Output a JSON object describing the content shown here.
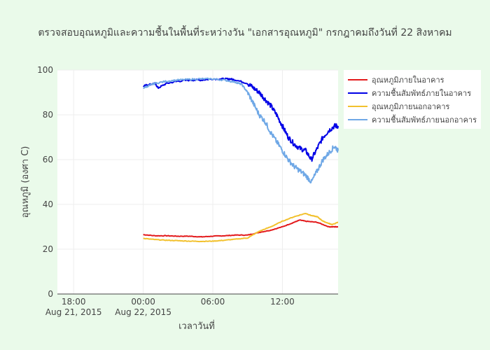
{
  "chart_data": {
    "type": "line",
    "title": "ตรวจสอบอุณหภูมิและความชื้นในพื้นที่ระหว่างวัน \"เอกสารอุณหภูมิ\" กรกฎาคมถึงวันที่ 22 สิงหาคม",
    "xlabel": "เวลาวันที่",
    "ylabel": "อุณหภูมิ (องศา C)",
    "ylim": [
      0,
      100
    ],
    "yticks": [
      0,
      20,
      40,
      60,
      80,
      100
    ],
    "xticks": [
      {
        "hour": -6,
        "line1": "18:00",
        "line2": "Aug 21, 2015"
      },
      {
        "hour": 0,
        "line1": "00:00",
        "line2": "Aug 22, 2015"
      },
      {
        "hour": 6,
        "line1": "06:00",
        "line2": ""
      },
      {
        "hour": 12,
        "line1": "12:00",
        "line2": ""
      }
    ],
    "grid": true,
    "legend_position": "top-right",
    "series": [
      {
        "name": "อุณหภูมิภายในอาคาร",
        "color": "#e31a1c",
        "x": [
          0,
          1,
          2,
          3,
          4,
          5,
          6,
          7,
          8,
          9,
          10,
          11,
          12,
          13,
          13.5,
          14,
          15,
          16,
          16.5,
          16.8
        ],
        "y": [
          26.5,
          26,
          26,
          25.8,
          25.8,
          25.5,
          25.8,
          26,
          26.3,
          26.3,
          27.5,
          28.5,
          30,
          32,
          33,
          32.5,
          32,
          30,
          30,
          30
        ]
      },
      {
        "name": "ความชื้นสัมพัทธ์ภายในอาคาร",
        "color": "#0000e6",
        "x": [
          0,
          0.5,
          1,
          1.3,
          2,
          3,
          4,
          5,
          6,
          7,
          7.5,
          8,
          9,
          9.5,
          10,
          10.5,
          11,
          11.5,
          12,
          12.5,
          13,
          13.5,
          14,
          14.5,
          15,
          15.5,
          16,
          16.5,
          16.8
        ],
        "y": [
          93,
          93.5,
          94,
          92,
          94,
          95,
          95.5,
          95.5,
          96,
          96,
          96,
          95.5,
          94,
          92,
          90,
          87,
          84,
          80,
          75,
          70,
          67,
          65,
          64,
          60,
          65,
          70,
          73,
          75,
          75
        ]
      },
      {
        "name": "อุณหภูมิภายนอกอาคาร",
        "color": "#f2c12e",
        "x": [
          0,
          1,
          2,
          3,
          4,
          5,
          6,
          7,
          8,
          9,
          10,
          11,
          12,
          13,
          14,
          14.5,
          15,
          15.5,
          16,
          16.3,
          16.8
        ],
        "y": [
          24.8,
          24.3,
          24,
          23.8,
          23.6,
          23.5,
          23.6,
          24,
          24.5,
          25,
          28,
          30,
          32.5,
          34.5,
          36,
          35,
          34.5,
          32.5,
          31.5,
          31,
          32
        ]
      },
      {
        "name": "ความชื้นสัมพัทธ์ภายนอกอาคาร",
        "color": "#6fa8e6",
        "x": [
          0,
          0.5,
          1,
          2,
          3,
          4,
          5,
          6,
          7,
          8,
          8.5,
          9,
          9.5,
          10,
          10.5,
          11,
          11.5,
          12,
          12.5,
          13,
          13.5,
          14,
          14.5,
          15,
          15.5,
          16,
          16.5,
          16.8
        ],
        "y": [
          92,
          93,
          94,
          95,
          95.5,
          95.8,
          96,
          96,
          95.5,
          94.5,
          93.5,
          90,
          85,
          80,
          77,
          72,
          68,
          64,
          60,
          57,
          55,
          53,
          50,
          55,
          60,
          63,
          66,
          64
        ]
      }
    ]
  }
}
